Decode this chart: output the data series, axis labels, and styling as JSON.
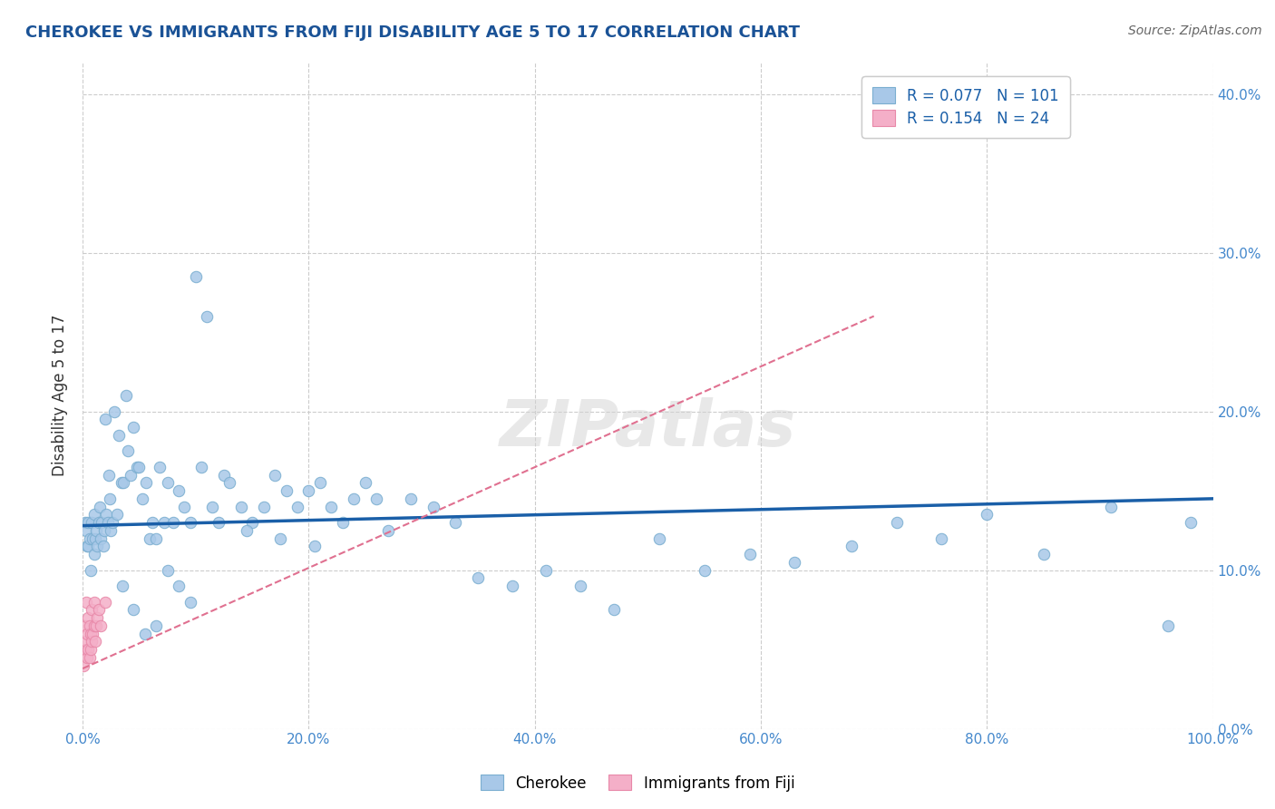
{
  "title": "CHEROKEE VS IMMIGRANTS FROM FIJI DISABILITY AGE 5 TO 17 CORRELATION CHART",
  "source": "Source: ZipAtlas.com",
  "ylabel": "Disability Age 5 to 17",
  "xlim": [
    0.0,
    1.0
  ],
  "ylim": [
    0.0,
    0.42
  ],
  "x_ticks": [
    0.0,
    0.2,
    0.4,
    0.6,
    0.8,
    1.0
  ],
  "x_tick_labels": [
    "0.0%",
    "20.0%",
    "40.0%",
    "60.0%",
    "80.0%",
    "100.0%"
  ],
  "y_ticks": [
    0.0,
    0.1,
    0.2,
    0.3,
    0.4
  ],
  "y_tick_labels": [
    "0.0%",
    "10.0%",
    "20.0%",
    "30.0%",
    "40.0%"
  ],
  "legend_r1": "0.077",
  "legend_n1": "101",
  "legend_r2": "0.154",
  "legend_n2": "24",
  "blue_color": "#a8c8e8",
  "pink_color": "#f4afc8",
  "blue_edge_color": "#7aaed0",
  "pink_edge_color": "#e888a8",
  "blue_line_color": "#1a5fa8",
  "pink_line_color": "#e07090",
  "title_color": "#1a5296",
  "source_color": "#666666",
  "background_color": "#ffffff",
  "grid_color": "#cccccc",
  "tick_label_color": "#4488cc",
  "cherokee_x": [
    0.002,
    0.003,
    0.004,
    0.005,
    0.005,
    0.006,
    0.007,
    0.008,
    0.009,
    0.01,
    0.01,
    0.011,
    0.012,
    0.013,
    0.014,
    0.015,
    0.016,
    0.017,
    0.018,
    0.019,
    0.02,
    0.021,
    0.022,
    0.023,
    0.024,
    0.025,
    0.026,
    0.028,
    0.03,
    0.032,
    0.034,
    0.036,
    0.038,
    0.04,
    0.042,
    0.045,
    0.048,
    0.05,
    0.053,
    0.056,
    0.059,
    0.062,
    0.065,
    0.068,
    0.072,
    0.075,
    0.08,
    0.085,
    0.09,
    0.095,
    0.1,
    0.105,
    0.11,
    0.115,
    0.12,
    0.125,
    0.13,
    0.14,
    0.15,
    0.16,
    0.17,
    0.18,
    0.19,
    0.2,
    0.21,
    0.22,
    0.23,
    0.24,
    0.25,
    0.26,
    0.27,
    0.29,
    0.31,
    0.33,
    0.35,
    0.38,
    0.41,
    0.44,
    0.47,
    0.51,
    0.55,
    0.59,
    0.63,
    0.68,
    0.72,
    0.76,
    0.8,
    0.85,
    0.91,
    0.96,
    0.98,
    0.035,
    0.045,
    0.055,
    0.065,
    0.075,
    0.085,
    0.095,
    0.145,
    0.175,
    0.205
  ],
  "cherokee_y": [
    0.13,
    0.125,
    0.115,
    0.115,
    0.13,
    0.12,
    0.1,
    0.13,
    0.12,
    0.11,
    0.135,
    0.12,
    0.125,
    0.115,
    0.13,
    0.14,
    0.12,
    0.13,
    0.115,
    0.125,
    0.195,
    0.135,
    0.13,
    0.16,
    0.145,
    0.125,
    0.13,
    0.2,
    0.135,
    0.185,
    0.155,
    0.155,
    0.21,
    0.175,
    0.16,
    0.19,
    0.165,
    0.165,
    0.145,
    0.155,
    0.12,
    0.13,
    0.12,
    0.165,
    0.13,
    0.155,
    0.13,
    0.15,
    0.14,
    0.13,
    0.285,
    0.165,
    0.26,
    0.14,
    0.13,
    0.16,
    0.155,
    0.14,
    0.13,
    0.14,
    0.16,
    0.15,
    0.14,
    0.15,
    0.155,
    0.14,
    0.13,
    0.145,
    0.155,
    0.145,
    0.125,
    0.145,
    0.14,
    0.13,
    0.095,
    0.09,
    0.1,
    0.09,
    0.075,
    0.12,
    0.1,
    0.11,
    0.105,
    0.115,
    0.13,
    0.12,
    0.135,
    0.11,
    0.14,
    0.065,
    0.13,
    0.09,
    0.075,
    0.06,
    0.065,
    0.1,
    0.09,
    0.08,
    0.125,
    0.12,
    0.115
  ],
  "fiji_x": [
    0.001,
    0.002,
    0.002,
    0.003,
    0.003,
    0.004,
    0.004,
    0.005,
    0.005,
    0.006,
    0.006,
    0.007,
    0.007,
    0.008,
    0.008,
    0.009,
    0.01,
    0.01,
    0.011,
    0.012,
    0.013,
    0.014,
    0.016,
    0.02
  ],
  "fiji_y": [
    0.04,
    0.05,
    0.065,
    0.055,
    0.08,
    0.045,
    0.06,
    0.07,
    0.05,
    0.045,
    0.065,
    0.05,
    0.06,
    0.055,
    0.075,
    0.06,
    0.065,
    0.08,
    0.055,
    0.065,
    0.07,
    0.075,
    0.065,
    0.08
  ],
  "cherokee_line_x": [
    0.0,
    1.0
  ],
  "cherokee_line_y": [
    0.128,
    0.145
  ],
  "fiji_line_x": [
    0.0,
    0.7
  ],
  "fiji_line_y": [
    0.038,
    0.26
  ]
}
